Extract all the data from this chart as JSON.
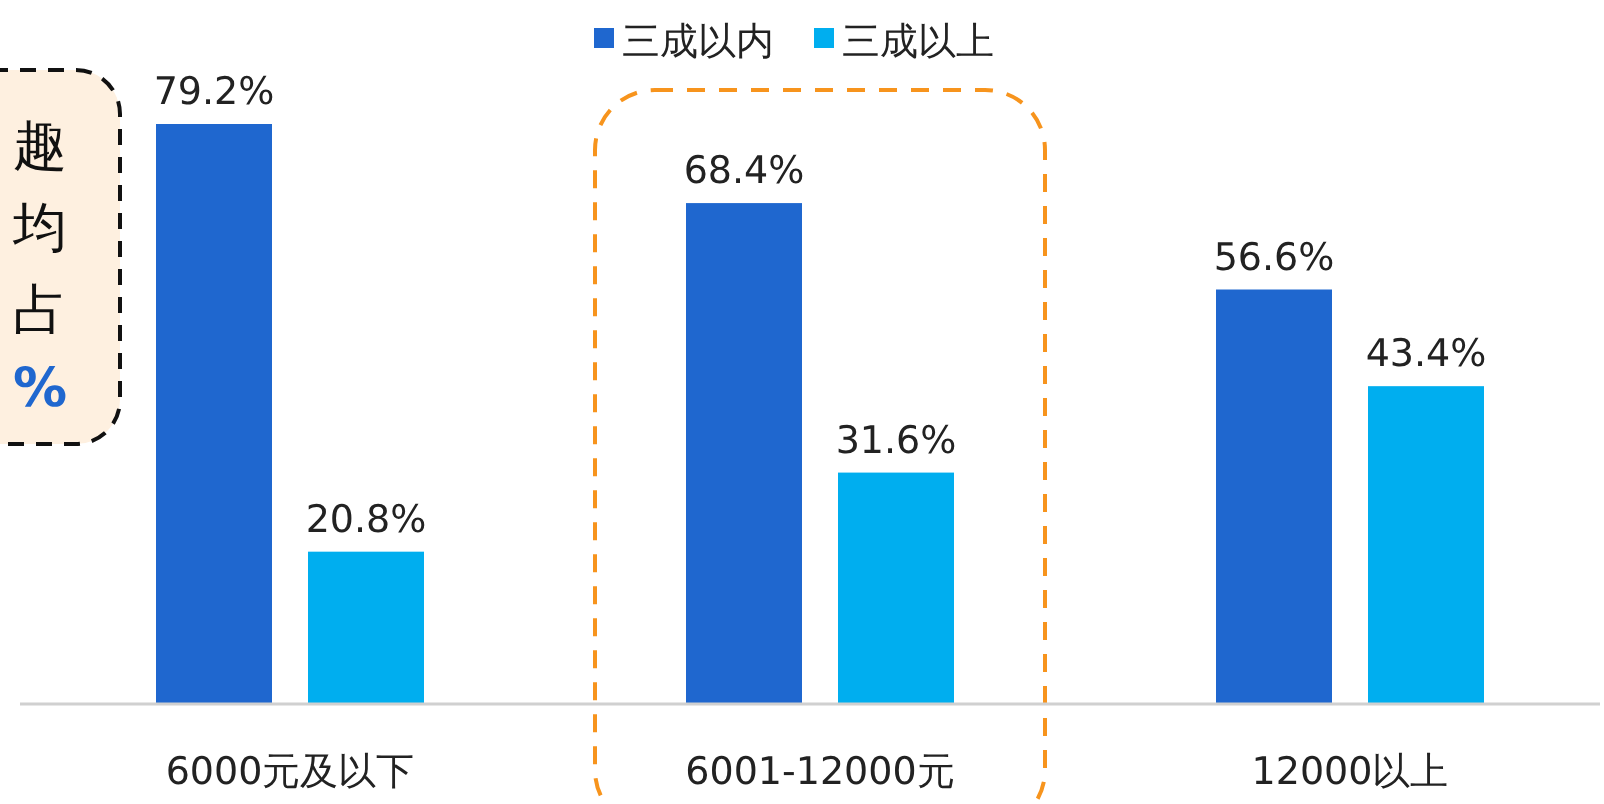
{
  "chart_data": {
    "type": "bar",
    "categories": [
      "6000元及以下",
      "6001-12000元",
      "12000以上"
    ],
    "series": [
      {
        "name": "三成以内",
        "color": "#1f67cf",
        "values": [
          79.2,
          68.4,
          56.6
        ],
        "value_labels": [
          "79.2%",
          "68.4%",
          "56.6%"
        ]
      },
      {
        "name": "三成以上",
        "color": "#00aeef",
        "values": [
          20.8,
          31.6,
          43.4
        ],
        "value_labels": [
          "20.8%",
          "31.6%",
          "43.4%"
        ]
      }
    ],
    "legend": "top",
    "annotations": [
      "趣均占",
      "%"
    ]
  }
}
